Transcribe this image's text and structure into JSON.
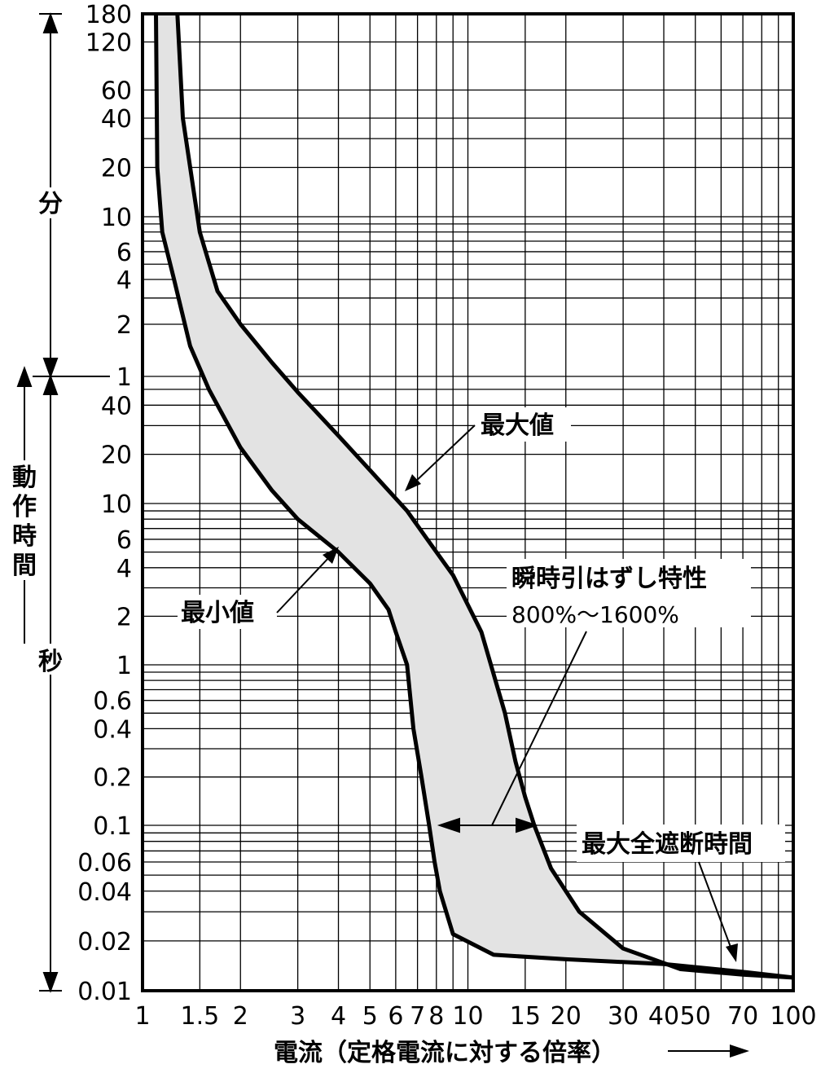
{
  "chart_data": {
    "type": "area",
    "x_scale": "log",
    "y_scale": "log",
    "xlim": [
      1,
      100
    ],
    "grid": true,
    "xlabel": "電流（定格電流に対する倍率）",
    "x_ticks": [
      "1",
      "1.5",
      "2",
      "3",
      "4",
      "5",
      "6",
      "7",
      "8",
      "10",
      "15",
      "20",
      "30",
      "40",
      "50",
      "70",
      "100"
    ],
    "y_ticks_minutes": [
      "180",
      "120",
      "60",
      "40",
      "20",
      "10",
      "6",
      "4",
      "2",
      "1"
    ],
    "y_ticks_seconds": [
      "40",
      "20",
      "10",
      "6",
      "4",
      "2",
      "1",
      "0.6",
      "0.4",
      "0.2",
      "0.1",
      "0.06",
      "0.04",
      "0.02",
      "0.01"
    ],
    "y_group_minutes": "分",
    "y_group_seconds": "秒",
    "ylabel": "動作時間",
    "series": [
      {
        "name": "最大値",
        "x": [
          1.28,
          1.33,
          1.5,
          1.7,
          2,
          2.5,
          3,
          4,
          5,
          6.5,
          7.5,
          9,
          11,
          13,
          14,
          15,
          16,
          18,
          22,
          30,
          45,
          70,
          100
        ],
        "y_seconds": [
          10800,
          2400,
          480,
          200,
          120,
          72,
          48,
          26,
          16,
          9,
          6,
          3.6,
          1.6,
          0.5,
          0.25,
          0.15,
          0.1,
          0.055,
          0.03,
          0.018,
          0.0135,
          0.0125,
          0.012
        ]
      },
      {
        "name": "最小値",
        "x": [
          1.1,
          1.11,
          1.15,
          1.25,
          1.4,
          1.6,
          2,
          2.5,
          3,
          4,
          5,
          5.7,
          6,
          6.5,
          6.8,
          7.2,
          7.6,
          7.9,
          8.2,
          9,
          12,
          20,
          40,
          70,
          100
        ],
        "y_seconds": [
          10800,
          1200,
          480,
          240,
          90,
          50,
          22,
          12,
          8,
          5,
          3.2,
          2.2,
          1.6,
          1,
          0.4,
          0.2,
          0.1,
          0.06,
          0.04,
          0.022,
          0.0165,
          0.0155,
          0.0145,
          0.013,
          0.012
        ]
      }
    ],
    "annotations": {
      "max_label": "最大値",
      "min_label": "最小値",
      "inst_title": "瞬時引はずし特性",
      "inst_range": "800%〜1600%",
      "total_break": "最大全遮断時間"
    }
  }
}
